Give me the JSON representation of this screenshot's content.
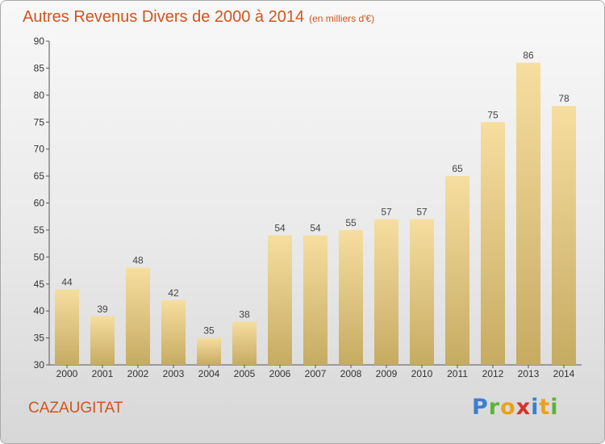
{
  "title": {
    "main": "Autres Revenus Divers de 2000 à 2014",
    "unit": "(en milliers d'€)"
  },
  "commune": "CAZAUGITAT",
  "logo": {
    "text": "Proxiti",
    "letter_colors": [
      "#3a7fd0",
      "#5db33a",
      "#e8a21c",
      "#d6322a",
      "#3a7fd0",
      "#e8a21c",
      "#5db33a"
    ]
  },
  "colors": {
    "title": "#d0551e",
    "bar_top": "#f6dea0",
    "bar_bottom": "#c6ab62",
    "axis": "#555555"
  },
  "chart_data": {
    "type": "bar",
    "categories": [
      "2000",
      "2001",
      "2002",
      "2003",
      "2004",
      "2005",
      "2006",
      "2007",
      "2008",
      "2009",
      "2010",
      "2011",
      "2012",
      "2013",
      "2014"
    ],
    "values": [
      44,
      39,
      48,
      42,
      35,
      38,
      54,
      54,
      55,
      57,
      57,
      65,
      75,
      86,
      78
    ],
    "ylim": [
      30,
      90
    ],
    "yticks": [
      30,
      35,
      40,
      45,
      50,
      55,
      60,
      65,
      70,
      75,
      80,
      85,
      90
    ],
    "grid": false,
    "data_labels": true
  }
}
